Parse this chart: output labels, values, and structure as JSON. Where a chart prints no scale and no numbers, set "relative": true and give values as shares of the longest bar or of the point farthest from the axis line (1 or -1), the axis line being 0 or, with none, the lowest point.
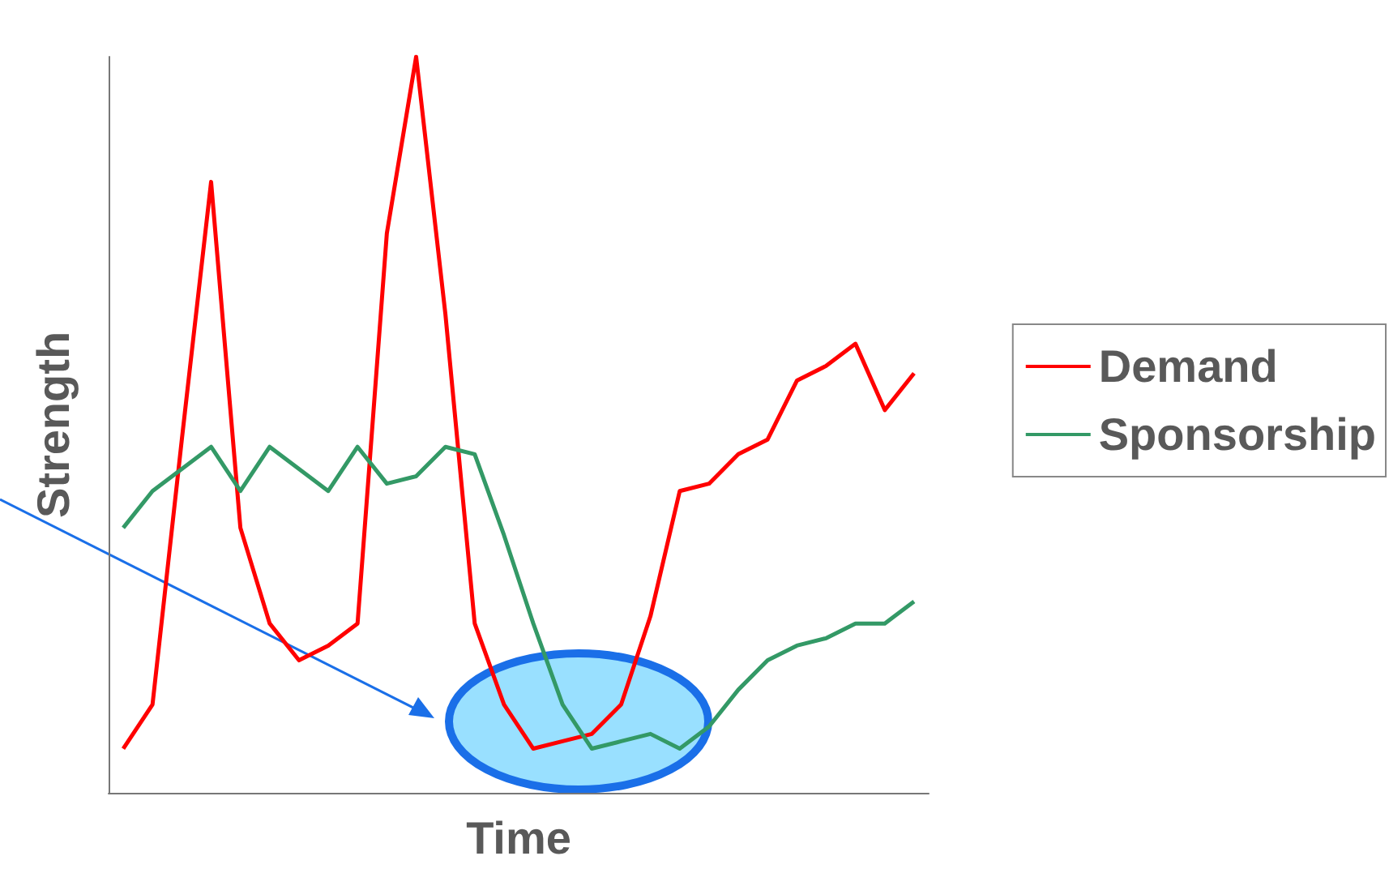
{
  "chart_data": {
    "type": "line",
    "relative": true,
    "xlabel": "Time",
    "ylabel": "Strength",
    "legend": "right",
    "grid": false,
    "marker": "none",
    "categories": [
      null,
      null,
      null,
      null,
      null,
      null,
      null,
      null,
      null,
      null,
      null,
      null,
      null,
      null,
      null,
      null,
      null,
      null,
      null,
      null,
      null,
      null,
      null,
      null,
      null,
      null,
      null,
      null
    ],
    "series": [
      {
        "name": "Demand",
        "color": "#ff0000",
        "values": [
          0.06,
          0.12,
          0.48,
          0.83,
          0.36,
          0.23,
          0.18,
          0.2,
          0.23,
          0.76,
          1,
          0.65,
          0.23,
          0.12,
          0.06,
          0.07,
          0.08,
          0.12,
          0.24,
          0.41,
          0.42,
          0.46,
          0.48,
          0.56,
          0.58,
          0.61,
          0.52,
          0.57
        ]
      },
      {
        "name": "Sponsorship",
        "color": "#339966",
        "values": [
          0.36,
          0.41,
          0.44,
          0.47,
          0.41,
          0.47,
          0.44,
          0.41,
          0.47,
          0.42,
          0.43,
          0.47,
          0.46,
          0.35,
          0.23,
          0.12,
          0.06,
          0.07,
          0.08,
          0.06,
          0.09,
          0.14,
          0.18,
          0.2,
          0.21,
          0.23,
          0.23,
          0.26
        ]
      }
    ]
  }
}
